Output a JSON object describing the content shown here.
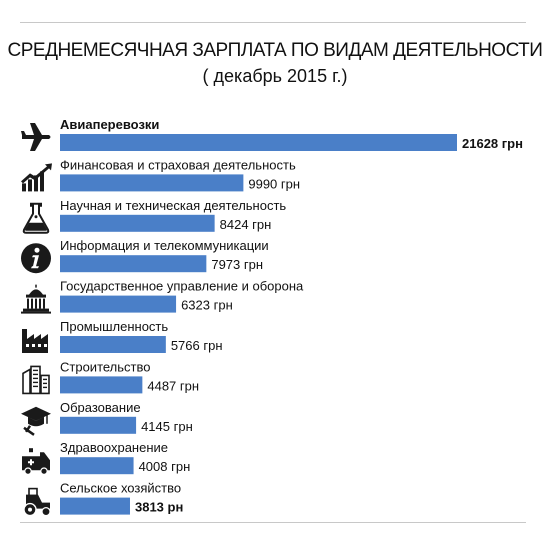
{
  "title": "СРЕДНЕМЕСЯЧНАЯ ЗАРПЛАТА ПО ВИДАМ ДЕЯТЕЛЬНОСТИ",
  "subtitle": "( декабрь 2015 г.)",
  "colors": {
    "bar": "#4a7fc8",
    "icon": "#1a1a1a",
    "rule": "#c8c8c8"
  },
  "chart_data": {
    "type": "bar",
    "orientation": "horizontal",
    "title": "СРЕДНЕМЕСЯЧНАЯ ЗАРПЛАТА ПО ВИДАМ ДЕЯТЕЛЬНОСТИ",
    "subtitle": "( декабрь 2015 г.)",
    "grid": false,
    "legend": "none",
    "xlim": [
      0,
      21628
    ],
    "categories": [
      "Авиаперевозки",
      "Финансовая и страховая деятельность",
      "Научная и техническая деятельность",
      "Информация и телекоммуникации",
      "Государственное управление и оборона",
      "Промышленность",
      "Строительство",
      "Образование",
      "Здравоохранение",
      "Сельское хозяйство"
    ],
    "values": [
      21628,
      9990,
      8424,
      7973,
      6323,
      5766,
      4487,
      4145,
      4008,
      3813
    ],
    "value_labels": [
      "21628 грн",
      "9990 грн",
      "8424 грн",
      "7973 грн",
      "6323 грн",
      "5766 грн",
      "4487 грн",
      "4145 грн",
      "4008 грн",
      "3813 рн"
    ],
    "icons": [
      "airplane-icon",
      "rising-chart-icon",
      "flask-icon",
      "info-icon",
      "government-building-icon",
      "factory-icon",
      "buildings-icon",
      "graduation-cap-icon",
      "ambulance-icon",
      "tractor-icon"
    ]
  }
}
